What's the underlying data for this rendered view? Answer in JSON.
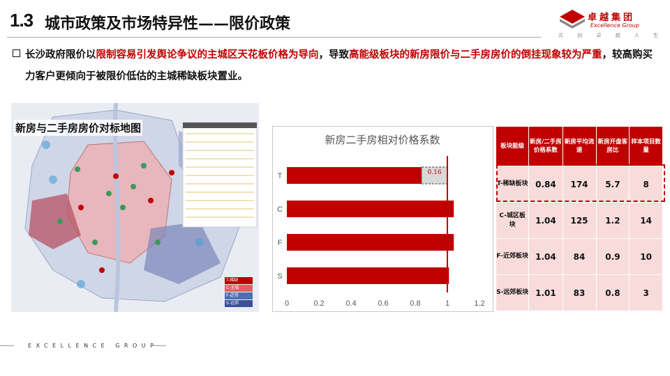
{
  "header": {
    "section_number": "1.3",
    "title": "城市政策及市场特异性——限价政策",
    "logo_cn": "卓越集团",
    "logo_en": "Excellence Group",
    "logo_slogan": "共 创 卓 越 人 生"
  },
  "paragraph": {
    "p1": "长沙政府限价以",
    "p2": "限制容易引发舆论争议的主城区天花板价格为导向",
    "p3": "，导致",
    "p4": "高能级板块的新房限价与二手房房价的倒挂现象较为严重",
    "p5": "，较高购买力客户更倾向于被限价低估的主城稀缺板块置业。"
  },
  "map": {
    "title": "新房与二手房房价对标地图",
    "legend": [
      "T-稀缺",
      "C-主城",
      "F-近郊",
      "S-远郊"
    ],
    "legend_colors": [
      "#c00000",
      "#e06060",
      "#4b6fb0",
      "#3b4f9a"
    ]
  },
  "chart_data": {
    "type": "bar",
    "orientation": "horizontal",
    "title": "新房二手房相对价格系数",
    "categories": [
      "T",
      "C",
      "F",
      "S"
    ],
    "values": [
      0.84,
      1.04,
      1.04,
      1.01
    ],
    "gap_annotation": {
      "category": "T",
      "value": 0.16,
      "label": "0.16"
    },
    "reference_line": 1,
    "xlim": [
      0,
      1.2
    ],
    "xticks": [
      "0",
      "0.2",
      "0.4",
      "0.6",
      "0.8",
      "1",
      "1.2"
    ],
    "bar_color": "#c00000",
    "grid": false
  },
  "table": {
    "headers": [
      "板块能级",
      "新房/二手房价格系数",
      "新房平均流速",
      "新房开盘客房比",
      "样本项目数量"
    ],
    "rows": [
      {
        "label": "T-稀缺板块",
        "coef": "0.84",
        "speed": "174",
        "ratio": "5.7",
        "count": "8"
      },
      {
        "label": "C-城区板块",
        "coef": "1.04",
        "speed": "125",
        "ratio": "1.2",
        "count": "14"
      },
      {
        "label": "F-近郊板块",
        "coef": "1.04",
        "speed": "84",
        "ratio": "0.9",
        "count": "10"
      },
      {
        "label": "S-远郊板块",
        "coef": "1.01",
        "speed": "83",
        "ratio": "0.8",
        "count": "3"
      }
    ]
  },
  "footer": {
    "text": "EXCELLENCE GROUP"
  }
}
